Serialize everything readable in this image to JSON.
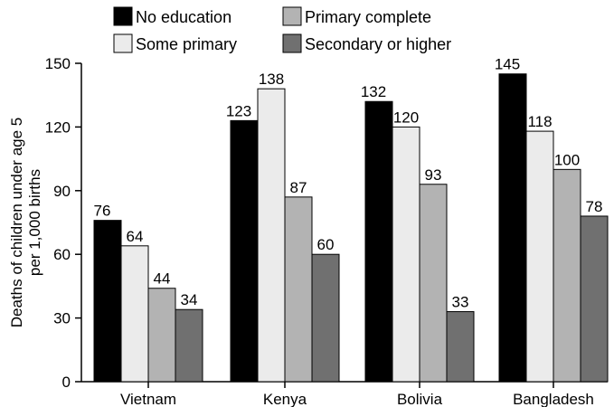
{
  "chart_data": {
    "type": "bar",
    "categories": [
      "Vietnam",
      "Kenya",
      "Bolivia",
      "Bangladesh"
    ],
    "series": [
      {
        "name": "No education",
        "values": [
          76,
          123,
          132,
          145
        ],
        "color": "#000000"
      },
      {
        "name": "Some primary",
        "values": [
          64,
          138,
          120,
          118
        ],
        "color": "#ebebeb"
      },
      {
        "name": "Primary complete",
        "values": [
          44,
          87,
          93,
          100
        ],
        "color": "#b3b3b3"
      },
      {
        "name": "Secondary or higher",
        "values": [
          34,
          60,
          33,
          78
        ],
        "color": "#707070"
      }
    ],
    "ylabel": "Deaths of children under age 5 per 1,000 births",
    "ylabel_lines": [
      "Deaths of children under age 5",
      "per 1,000 births"
    ],
    "ylim": [
      0,
      150
    ],
    "yticks": [
      0,
      30,
      60,
      90,
      120,
      150
    ],
    "grid": false,
    "legend_position": "top"
  }
}
